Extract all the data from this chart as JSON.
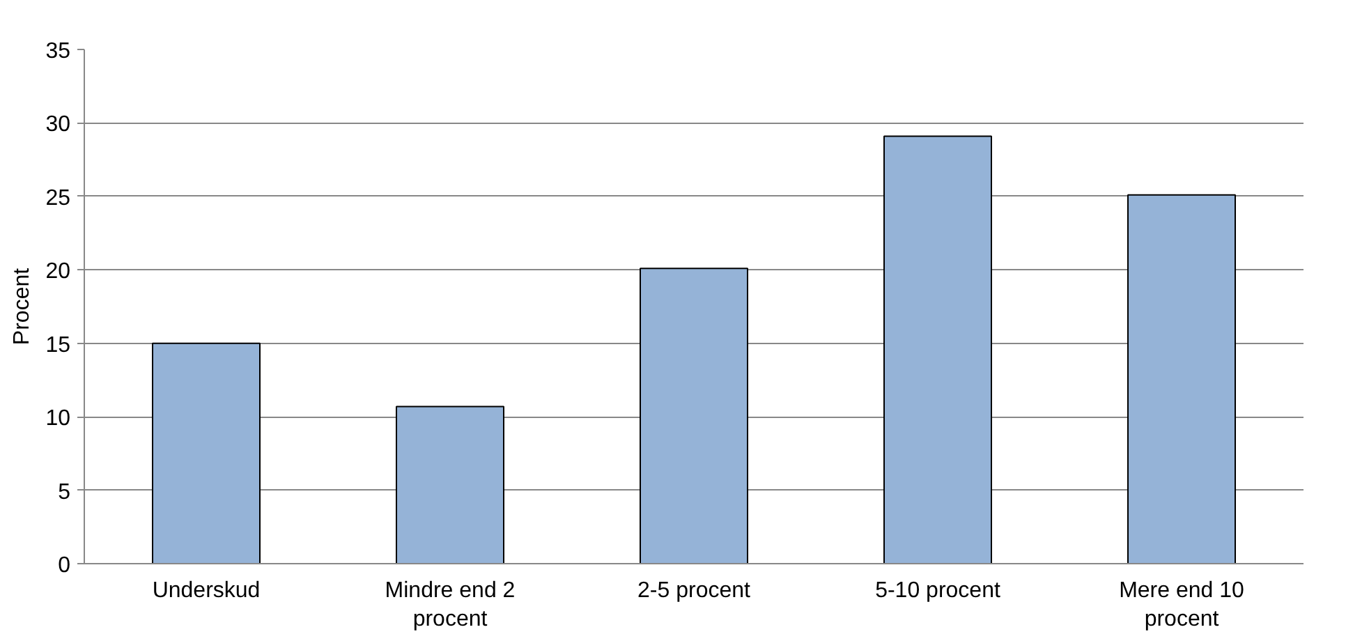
{
  "chart_data": {
    "type": "bar",
    "ylabel": "Procent",
    "categories": [
      "Underskud",
      "Mindre end 2 procent",
      "2-5 procent",
      "5-10 procent",
      "Mere end 10 procent"
    ],
    "values": [
      15.0,
      10.7,
      20.1,
      29.1,
      25.1
    ],
    "color": "#95b3d7",
    "ylim": [
      0,
      35
    ],
    "yticks": [
      0,
      5,
      10,
      15,
      20,
      25,
      30,
      35
    ],
    "grid": "y"
  }
}
